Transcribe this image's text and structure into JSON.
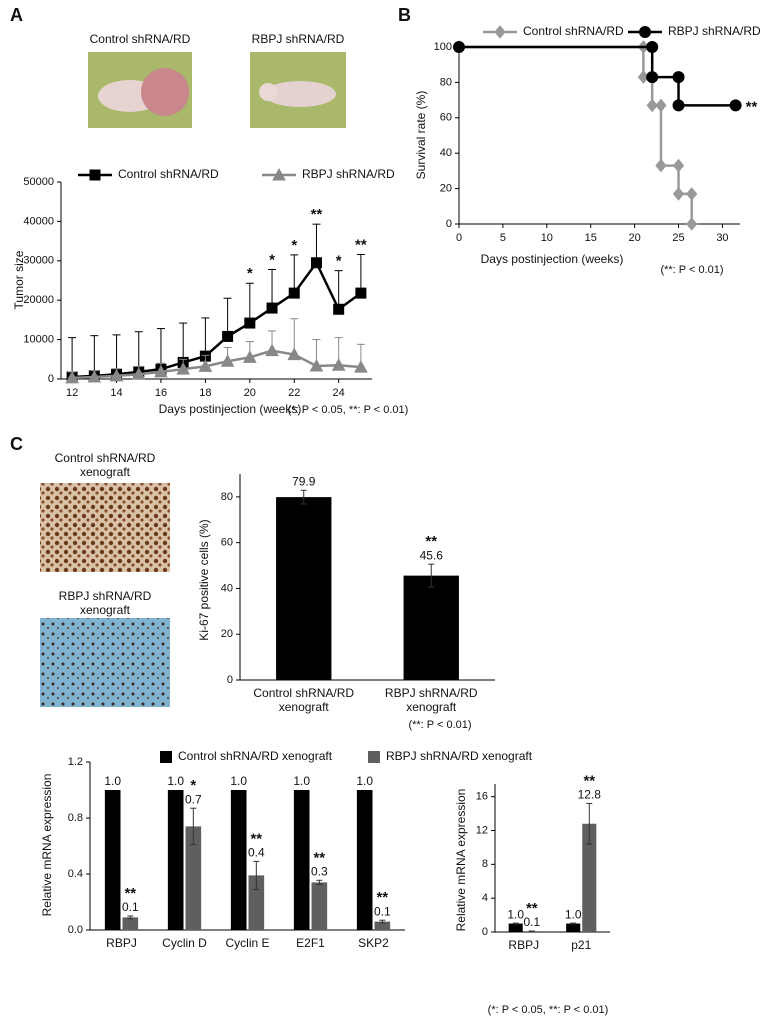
{
  "panels": {
    "letters": [
      "A",
      "B",
      "C"
    ],
    "photo_captions": [
      "Control shRNA/RD",
      "RBPJ shRNA/RD"
    ],
    "histology_captions": [
      [
        "Control shRNA/RD",
        "xenograft"
      ],
      [
        "RBPJ shRNA/RD",
        "xenograft"
      ]
    ]
  },
  "chart_data": [
    {
      "type": "line",
      "x_label": "Days postinjection (weeks)",
      "y_label": "Tumor size",
      "x": [
        12,
        13,
        14,
        15,
        16,
        17,
        18,
        19,
        20,
        21,
        22,
        23,
        24,
        25
      ],
      "series": [
        {
          "name": "Control shRNA/RD",
          "color": "#000000",
          "marker": "square",
          "values": [
            500,
            800,
            1200,
            1800,
            2500,
            4200,
            5800,
            10800,
            14200,
            18000,
            21800,
            29500,
            17700,
            21800
          ],
          "errors": [
            10000,
            10200,
            10000,
            10200,
            10300,
            10000,
            9700,
            9700,
            10100,
            9800,
            9700,
            9800,
            9800,
            9800
          ]
        },
        {
          "name": "RBPJ shRNA/RD",
          "color": "#888888",
          "marker": "triangle",
          "values": [
            300,
            500,
            800,
            1200,
            1800,
            2500,
            3200,
            4500,
            5500,
            7200,
            6200,
            3300,
            3500,
            3000
          ],
          "errors": [
            1500,
            1600,
            1800,
            2000,
            2200,
            2500,
            2800,
            3500,
            4000,
            5000,
            9100,
            6700,
            7000,
            5800
          ]
        }
      ],
      "significance": [
        null,
        null,
        null,
        null,
        null,
        null,
        null,
        null,
        "*",
        "*",
        "*",
        "**",
        "*",
        "**"
      ],
      "xlim": [
        11.5,
        25.5
      ],
      "xticks": [
        12,
        14,
        16,
        18,
        20,
        22,
        24
      ],
      "ylim": [
        0,
        50000
      ],
      "yticks": [
        0,
        10000,
        20000,
        30000,
        40000,
        50000
      ],
      "footnote": "(*: P < 0.05, **: P < 0.01)"
    },
    {
      "type": "line",
      "x_label": "Days postinjection (weeks)",
      "y_label": "Survival rate (%)",
      "series": [
        {
          "name": "Control shRNA/RD",
          "color": "#999999",
          "marker": "diamond",
          "x": [
            0,
            21,
            21,
            22,
            22,
            23,
            23,
            25,
            25,
            26.5,
            26.5
          ],
          "values": [
            100,
            100,
            83,
            83,
            67,
            67,
            33,
            33,
            17,
            17,
            0
          ]
        },
        {
          "name": "RBPJ shRNA/RD",
          "color": "#000000",
          "marker": "circle",
          "x": [
            0,
            22,
            22,
            25,
            25,
            31.5
          ],
          "values": [
            100,
            100,
            83,
            83,
            67,
            67
          ],
          "annotation": "**"
        }
      ],
      "xlim": [
        0,
        32
      ],
      "xticks": [
        0,
        5,
        10,
        15,
        20,
        25,
        30
      ],
      "ylim": [
        0,
        100
      ],
      "yticks": [
        0,
        20,
        40,
        60,
        80,
        100
      ],
      "footnote": "(**: P < 0.01)"
    },
    {
      "type": "bar",
      "y_label": "Ki-67 positive cells (%)",
      "categories": [
        [
          "Control shRNA/RD",
          "xenograft"
        ],
        [
          "RBPJ shRNA/RD",
          "xenograft"
        ]
      ],
      "values": [
        79.9,
        45.6
      ],
      "errors": [
        3,
        5
      ],
      "significance": [
        null,
        "**"
      ],
      "color": "#000000",
      "ylim": [
        0,
        90
      ],
      "yticks": [
        0,
        20,
        40,
        60,
        80
      ],
      "footnote": "(**: P < 0.01)"
    },
    {
      "type": "bar",
      "y_label": "Relative mRNA expression",
      "categories": [
        "RBPJ",
        "Cyclin D",
        "Cyclin E",
        "E2F1",
        "SKP2"
      ],
      "series": [
        {
          "name": "Control shRNA/RD xenograft",
          "color": "#000000",
          "values": [
            1,
            1,
            1,
            1,
            1
          ],
          "value_labels": [
            "1.0",
            "1.0",
            "1.0",
            "1.0",
            "1.0"
          ]
        },
        {
          "name": "RBPJ shRNA/RD xenograft",
          "color": "#5f5f5f",
          "values": [
            0.09,
            0.74,
            0.39,
            0.34,
            0.06
          ],
          "value_labels": [
            "0.1",
            "0.7",
            "0.4",
            "0.3",
            "0.1"
          ],
          "errors": [
            0.01,
            0.13,
            0.1,
            0.015,
            0.01
          ],
          "significance": [
            "**",
            "*",
            "**",
            "**",
            "**"
          ]
        }
      ],
      "ylim": [
        0,
        1.2
      ],
      "yticks": [
        {
          "value": 0,
          "label": "0.0"
        },
        0.4,
        0.8,
        1.2
      ]
    },
    {
      "type": "bar",
      "y_label": "Relative mRNA expression",
      "categories": [
        "RBPJ",
        "p21"
      ],
      "series": [
        {
          "color": "#000000",
          "values": [
            1,
            1
          ],
          "value_labels": [
            "1.0",
            "1.0"
          ],
          "errors": [
            0.05,
            0.05
          ]
        },
        {
          "color": "#5f5f5f",
          "values": [
            0.1,
            12.8
          ],
          "errors": [
            0.02,
            2.4
          ],
          "significance": [
            "**",
            "**"
          ]
        }
      ],
      "ylim": [
        0,
        17.5
      ],
      "yticks": [
        0,
        4,
        8,
        12,
        16
      ],
      "footnote": "(*: P < 0.05, **: P < 0.01)"
    }
  ]
}
